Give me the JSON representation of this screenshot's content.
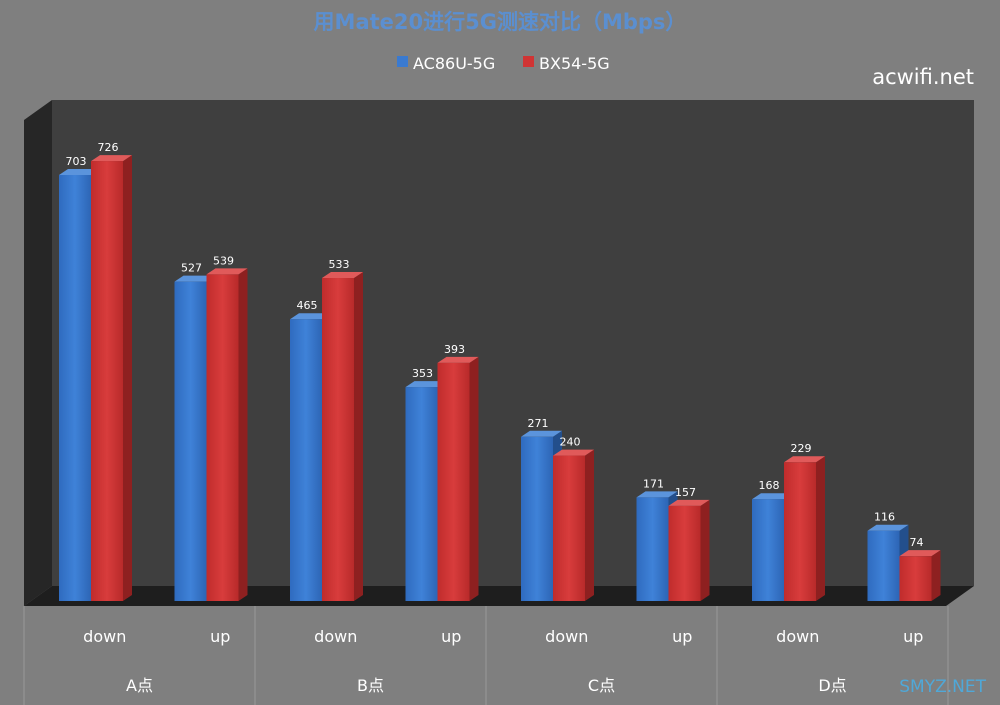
{
  "watermark": "acwifi.net",
  "watermark_bottom": "SMYZ.NET",
  "chart_data": {
    "type": "bar",
    "title": "用Mate20进行5G测速对比（Mbps）",
    "xlabel": "",
    "ylabel": "",
    "ylim": [
      0,
      780
    ],
    "grid": false,
    "legend_position": "top",
    "groups": [
      "A点",
      "B点",
      "C点",
      "D点"
    ],
    "categories": [
      "down",
      "up",
      "down",
      "up",
      "down",
      "up",
      "down",
      "up"
    ],
    "series": [
      {
        "name": "AC86U-5G",
        "color": "#3a7ad0",
        "values": [
          703,
          527,
          465,
          353,
          271,
          171,
          168,
          116
        ]
      },
      {
        "name": "BX54-5G",
        "color": "#d03434",
        "values": [
          726,
          539,
          533,
          393,
          240,
          157,
          229,
          74
        ]
      }
    ]
  }
}
